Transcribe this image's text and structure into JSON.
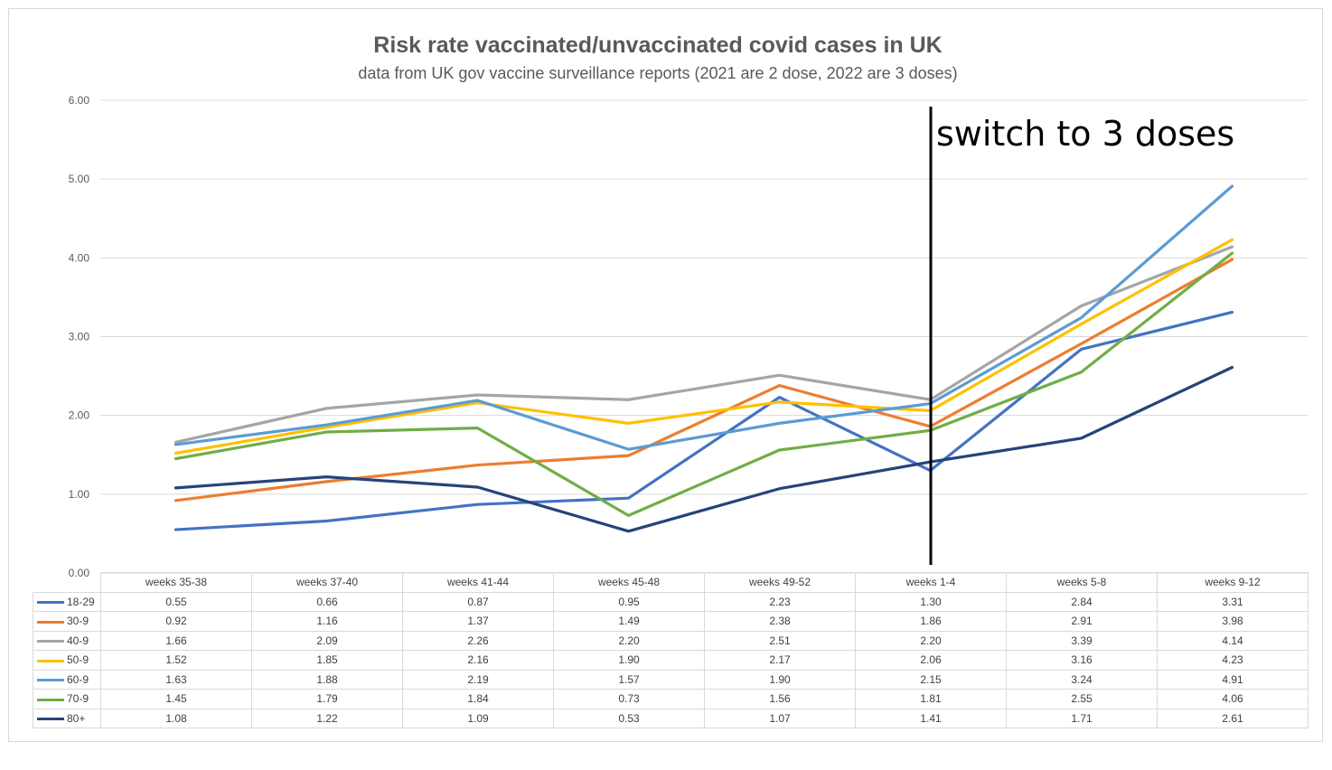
{
  "chart_data": {
    "type": "line",
    "title": "Risk rate vaccinated/unvaccinated covid cases in UK",
    "subtitle": "data from UK gov vaccine surveillance reports  (2021 are 2 dose, 2022 are 3 doses)",
    "categories": [
      "weeks 35-38",
      "weeks 37-40",
      "weeks 41-44",
      "weeks 45-48",
      "weeks 49-52",
      "weeks 1-4",
      "weeks 5-8",
      "weeks 9-12"
    ],
    "ylim": [
      0,
      6
    ],
    "yticks": [
      "0.00",
      "1.00",
      "2.00",
      "3.00",
      "4.00",
      "5.00",
      "6.00"
    ],
    "grid": true,
    "legend": "data table below chart",
    "series": [
      {
        "name": "18-29",
        "color": "#4472c4",
        "values": [
          0.55,
          0.66,
          0.87,
          0.95,
          2.23,
          1.3,
          2.84,
          3.31
        ],
        "labels": [
          "0.55",
          "0.66",
          "0.87",
          "0.95",
          "2.23",
          "1.30",
          "2.84",
          "3.31"
        ]
      },
      {
        "name": "30-9",
        "color": "#ed7d31",
        "values": [
          0.92,
          1.16,
          1.37,
          1.49,
          2.38,
          1.86,
          2.91,
          3.98
        ],
        "labels": [
          "0.92",
          "1.16",
          "1.37",
          "1.49",
          "2.38",
          "1.86",
          "2.91",
          "3.98"
        ]
      },
      {
        "name": "40-9",
        "color": "#a5a5a5",
        "values": [
          1.66,
          2.09,
          2.26,
          2.2,
          2.51,
          2.2,
          3.39,
          4.14
        ],
        "labels": [
          "1.66",
          "2.09",
          "2.26",
          "2.20",
          "2.51",
          "2.20",
          "3.39",
          "4.14"
        ]
      },
      {
        "name": "50-9",
        "color": "#ffc000",
        "values": [
          1.52,
          1.85,
          2.16,
          1.9,
          2.17,
          2.06,
          3.16,
          4.23
        ],
        "labels": [
          "1.52",
          "1.85",
          "2.16",
          "1.90",
          "2.17",
          "2.06",
          "3.16",
          "4.23"
        ]
      },
      {
        "name": "60-9",
        "color": "#5b9bd5",
        "values": [
          1.63,
          1.88,
          2.19,
          1.57,
          1.9,
          2.15,
          3.24,
          4.91
        ],
        "labels": [
          "1.63",
          "1.88",
          "2.19",
          "1.57",
          "1.90",
          "2.15",
          "3.24",
          "4.91"
        ]
      },
      {
        "name": "70-9",
        "color": "#70ad47",
        "values": [
          1.45,
          1.79,
          1.84,
          0.73,
          1.56,
          1.81,
          2.55,
          4.06
        ],
        "labels": [
          "1.45",
          "1.79",
          "1.84",
          "0.73",
          "1.56",
          "1.81",
          "2.55",
          "4.06"
        ]
      },
      {
        "name": "80+",
        "color": "#264478",
        "values": [
          1.08,
          1.22,
          1.09,
          0.53,
          1.07,
          1.41,
          1.71,
          2.61
        ],
        "labels": [
          "1.08",
          "1.22",
          "1.09",
          "0.53",
          "1.07",
          "1.41",
          "1.71",
          "2.61"
        ]
      }
    ],
    "annotation": {
      "text": "switch to 3 doses",
      "marker": "vertical line at weeks 1-4"
    }
  }
}
